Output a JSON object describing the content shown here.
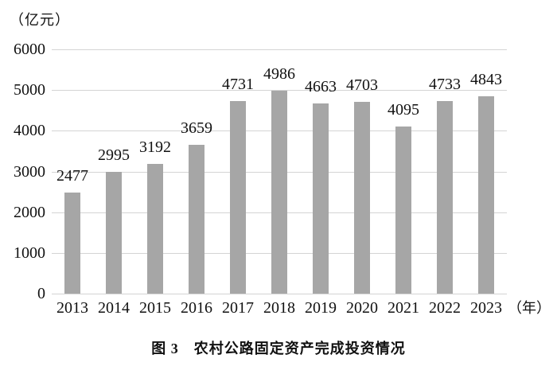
{
  "caption": "图 3　农村公路固定资产完成投资情况",
  "chart_data": {
    "type": "bar",
    "title": "农村公路固定资产完成投资情况",
    "figure_label": "图 3",
    "categories": [
      "2013",
      "2014",
      "2015",
      "2016",
      "2017",
      "2018",
      "2019",
      "2020",
      "2021",
      "2022",
      "2023"
    ],
    "values": [
      2477,
      2995,
      3192,
      3659,
      4731,
      4986,
      4663,
      4703,
      4095,
      4733,
      4843
    ],
    "y_unit_label": "（亿元）",
    "x_unit_label": "（年）",
    "xlabel": "年",
    "ylabel": "亿元",
    "ylim": [
      0,
      6000
    ],
    "yticks": [
      0,
      1000,
      2000,
      3000,
      4000,
      5000,
      6000
    ],
    "grid": true,
    "legend": "none",
    "value_labels_shown": true,
    "bar_color": "#a6a6a6",
    "gridline_color": "#d4d4d4",
    "text_color": "#111111",
    "background_color": "#ffffff"
  }
}
